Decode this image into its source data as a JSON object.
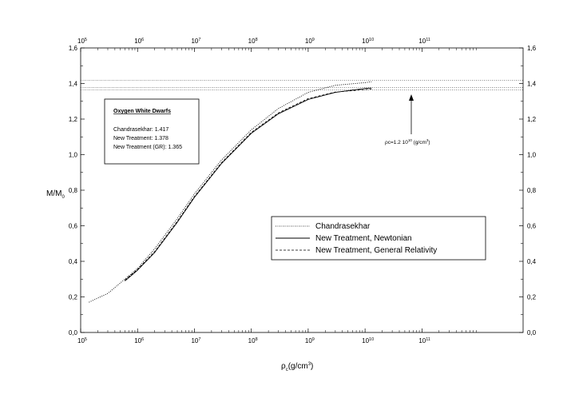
{
  "chart_data": {
    "type": "line",
    "title": "",
    "xlabel": "ρc(g/cm3)",
    "ylabel": "M/M0",
    "x_scale": "log",
    "xlim": [
      100000,
      6000000000000
    ],
    "ylim": [
      0.0,
      1.6
    ],
    "x_ticks": [
      {
        "base": "10",
        "exp": "5",
        "value": 100000
      },
      {
        "base": "10",
        "exp": "6",
        "value": 1000000
      },
      {
        "base": "10",
        "exp": "7",
        "value": 10000000
      },
      {
        "base": "10",
        "exp": "8",
        "value": 100000000
      },
      {
        "base": "10",
        "exp": "9",
        "value": 1000000000
      },
      {
        "base": "10",
        "exp": "10",
        "value": 10000000000
      },
      {
        "base": "10",
        "exp": "11",
        "value": 100000000000
      }
    ],
    "y_ticks": [
      "0,0",
      "0,2",
      "0,4",
      "0,6",
      "0,8",
      "1,0",
      "1,2",
      "1,4",
      "1,6"
    ],
    "y_tick_values": [
      0.0,
      0.2,
      0.4,
      0.6,
      0.8,
      1.0,
      1.2,
      1.4,
      1.6
    ],
    "grid": false,
    "legend_position": "center-right",
    "series": [
      {
        "name": "Chandrasekhar",
        "style": "dotted",
        "x": [
          140000,
          300000,
          600000,
          1000000,
          2000000,
          5000000,
          10000000,
          30000000,
          100000000,
          300000000,
          1000000000,
          3000000000,
          10000000000,
          13000000000
        ],
        "y": [
          0.17,
          0.22,
          0.3,
          0.36,
          0.47,
          0.64,
          0.78,
          0.97,
          1.14,
          1.26,
          1.35,
          1.39,
          1.405,
          1.41
        ]
      },
      {
        "name": "New Treatment, Newtonian",
        "style": "solid",
        "x": [
          600000,
          1000000,
          2000000,
          5000000,
          10000000,
          30000000,
          100000000,
          300000000,
          1000000000,
          3000000000,
          10000000000,
          13000000000
        ],
        "y": [
          0.29,
          0.35,
          0.45,
          0.62,
          0.76,
          0.95,
          1.12,
          1.23,
          1.31,
          1.35,
          1.372,
          1.375
        ]
      },
      {
        "name": "New Treatment, General Relativity",
        "style": "dashed",
        "x": [
          600000,
          1000000,
          2000000,
          5000000,
          10000000,
          30000000,
          100000000,
          300000000,
          1000000000,
          3000000000,
          10000000000,
          13000000000
        ],
        "y": [
          0.295,
          0.355,
          0.455,
          0.625,
          0.765,
          0.955,
          1.125,
          1.235,
          1.315,
          1.352,
          1.366,
          1.368
        ]
      }
    ],
    "reference_lines": [
      1.417,
      1.378,
      1.365
    ],
    "info_box": {
      "title": "Oxygen White Dwarfs",
      "lines": [
        "Chandrasekhar: 1.417",
        "New Treatment: 1.378",
        "New Treatment (GR): 1.365"
      ]
    },
    "annotation": {
      "text_prefix": "ρc=1.2 10",
      "exp": "10",
      "text_suffix": " (g/cm",
      "unit_exp": "3",
      "close": ")",
      "x": 12000000000,
      "y": 1.378
    },
    "xlabel_parts": {
      "main": "ρ",
      "sub": "c",
      "unit": "(g/cm",
      "unit_exp": "3",
      "close": ")"
    },
    "ylabel_parts": {
      "main": "M/M",
      "sub": "0"
    }
  }
}
